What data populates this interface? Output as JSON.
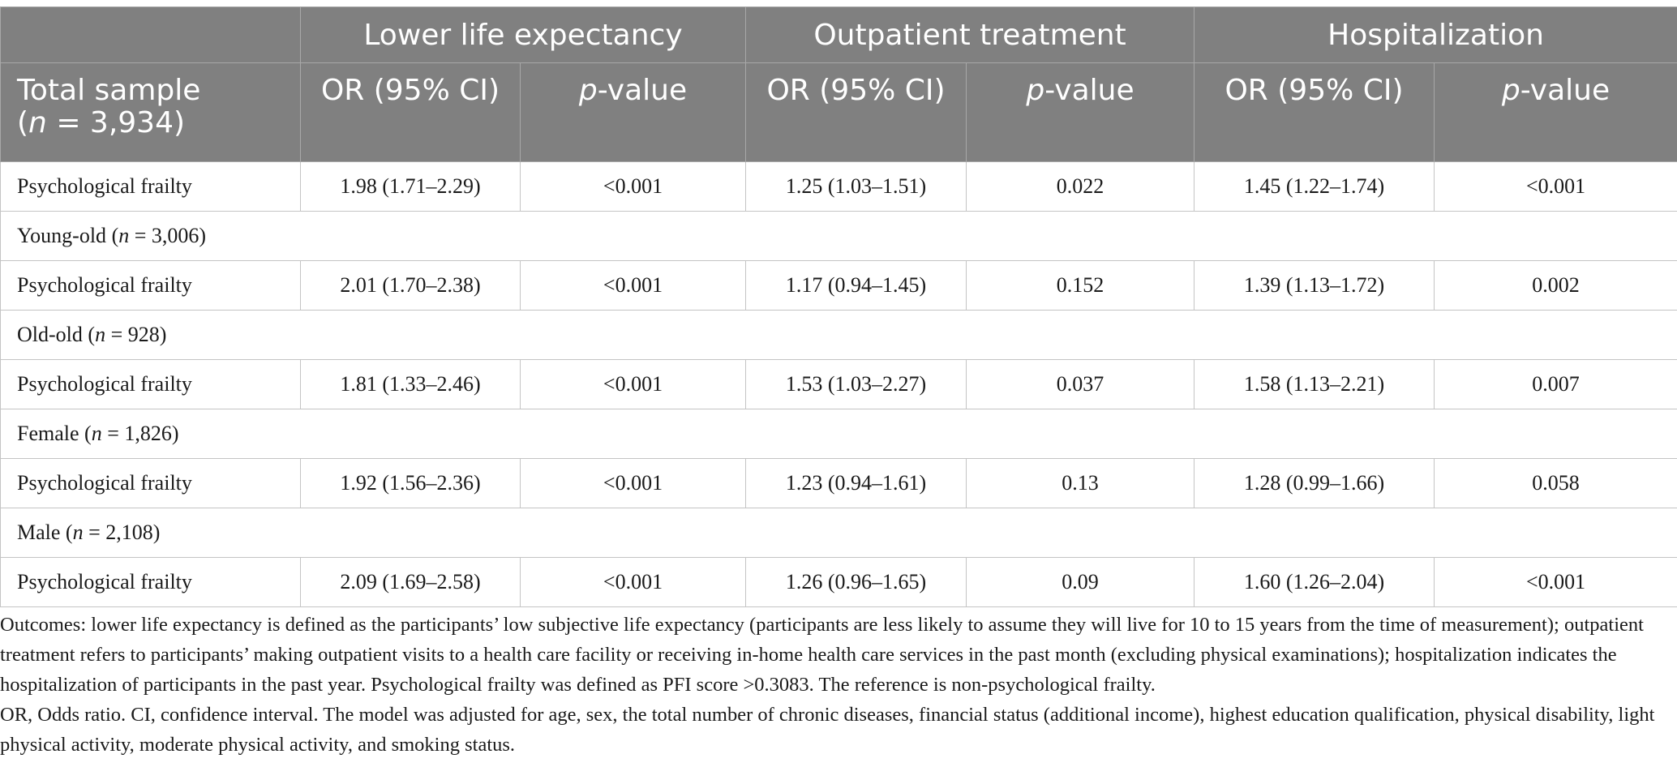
{
  "table": {
    "header": {
      "groups": [
        "Lower life expectancy",
        "Outpatient treatment",
        "Hospitalization"
      ],
      "first_col": {
        "line1": "Total sample",
        "n_open": "(",
        "n_var": "n",
        "n_rest": " = 3,934)"
      },
      "or_label": "OR (95% CI)",
      "p_var": "p",
      "p_rest": "-value"
    },
    "rows": [
      {
        "kind": "data",
        "label": "Psychological frailty",
        "values": [
          "1.98 (1.71–2.29)",
          "<0.001",
          "1.25 (1.03–1.51)",
          "0.022",
          "1.45 (1.22–1.74)",
          "<0.001"
        ]
      },
      {
        "kind": "group",
        "name": "Young-old",
        "n_var": "n",
        "n_rest": " = 3,006)"
      },
      {
        "kind": "data",
        "label": "Psychological frailty",
        "values": [
          "2.01 (1.70–2.38)",
          "<0.001",
          "1.17 (0.94–1.45)",
          "0.152",
          "1.39 (1.13–1.72)",
          "0.002"
        ]
      },
      {
        "kind": "group",
        "name": "Old-old",
        "n_var": "n",
        "n_rest": " = 928)"
      },
      {
        "kind": "data",
        "label": "Psychological frailty",
        "values": [
          "1.81 (1.33–2.46)",
          "<0.001",
          "1.53 (1.03–2.27)",
          "0.037",
          "1.58 (1.13–2.21)",
          "0.007"
        ]
      },
      {
        "kind": "group",
        "name": "Female",
        "n_var": "n",
        "n_rest": " = 1,826)"
      },
      {
        "kind": "data",
        "label": "Psychological frailty",
        "values": [
          "1.92 (1.56–2.36)",
          "<0.001",
          "1.23 (0.94–1.61)",
          "0.13",
          "1.28 (0.99–1.66)",
          "0.058"
        ]
      },
      {
        "kind": "group",
        "name": "Male",
        "n_var": "n",
        "n_rest": " = 2,108)"
      },
      {
        "kind": "data",
        "label": "Psychological frailty",
        "values": [
          "2.09 (1.69–2.58)",
          "<0.001",
          "1.26 (0.96–1.65)",
          "0.09",
          "1.60 (1.26–2.04)",
          "<0.001"
        ]
      }
    ]
  },
  "footnote": {
    "p1": "Outcomes: lower life expectancy is defined as the participants’ low subjective life expectancy (participants are less likely to assume they will live for 10 to 15 years from the time of measurement); outpatient treatment refers to participants’ making outpatient visits to a health care facility or receiving in-home health care services in the past month (excluding physical examinations); hospitalization indicates the hospitalization of participants in the past year. Psychological frailty was defined as PFI score >0.3083. The reference is non-psychological frailty.",
    "p2": "OR, Odds ratio. CI, confidence interval. The model was adjusted for age, sex, the total number of chronic diseases, financial status (additional income), highest education qualification, physical disability, light physical activity, moderate physical activity, and smoking status."
  },
  "colors": {
    "header_bg": "#808080",
    "header_text": "#ffffff",
    "grid": "#c4c4c4",
    "body_text": "#1a1a1a"
  }
}
